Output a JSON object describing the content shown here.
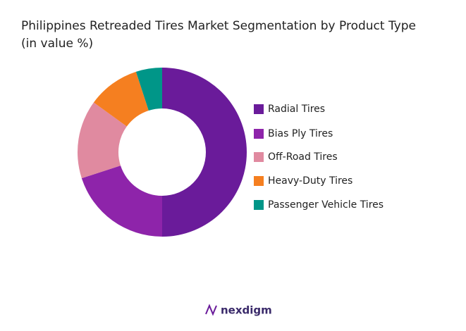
{
  "chart_data": {
    "type": "donut",
    "title": "Philippines Retreaded Tires Market Segmentation by Product Type",
    "subtitle": "(in value %)",
    "categories": [
      "Radial Tires",
      "Bias Ply Tires",
      "Off-Road Tires",
      "Heavy-Duty Tires",
      "Passenger Vehicle Tires"
    ],
    "values": [
      50,
      20,
      15,
      10,
      5
    ],
    "colors": [
      "#6a1b9a",
      "#8e24aa",
      "#e08aa0",
      "#f57f20",
      "#009688"
    ],
    "legend": "right"
  },
  "footer": "nexdigm"
}
